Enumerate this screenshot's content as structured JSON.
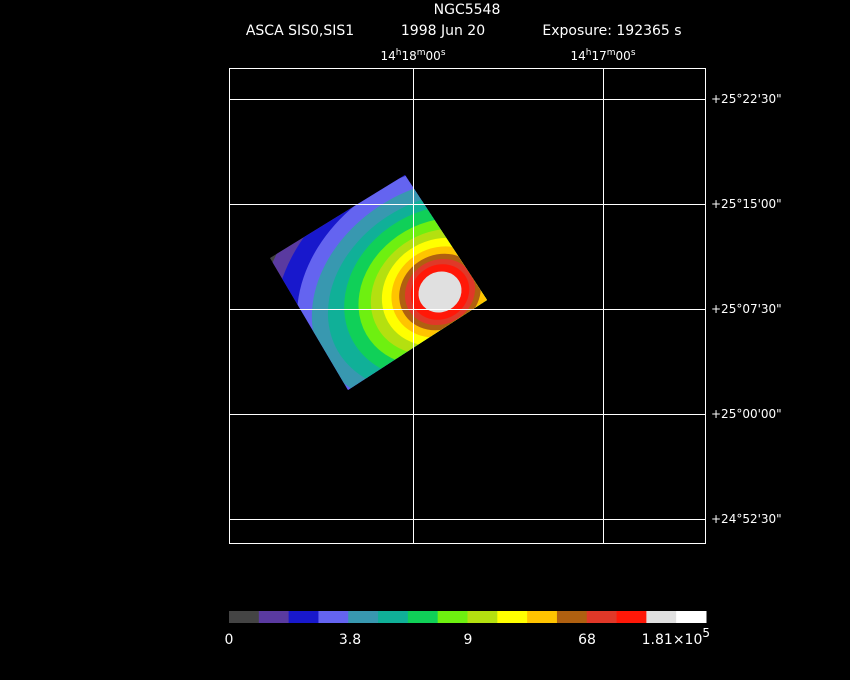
{
  "header": {
    "title": "NGC5548",
    "instrument": "ASCA SIS0,SIS1",
    "date": "1998 Jun 20",
    "exposure": "Exposure: 192365 s"
  },
  "ra_labels": [
    [
      "14",
      "h",
      "18",
      "m",
      "00",
      "s"
    ],
    [
      "14",
      "h",
      "17",
      "m",
      "00",
      "s"
    ]
  ],
  "dec_labels": [
    "+25°22'30\"",
    "+25°15'00\"",
    "+25°07'30\"",
    "+25°00'00\"",
    "+24°52'30\""
  ],
  "colorbar": {
    "colors": [
      "#444444",
      "#5a3aa0",
      "#1818cc",
      "#6464f0",
      "#3898b0",
      "#10b098",
      "#10d058",
      "#6ef010",
      "#b4e010",
      "#ffff00",
      "#ffc400",
      "#b06010",
      "#e03828",
      "#ff1808",
      "#e0e0e0",
      "#ffffff"
    ],
    "labels": [
      "0",
      "3.8",
      "9",
      "68"
    ],
    "max_label": {
      "mantissa": "1.81×10",
      "exponent": "5"
    }
  }
}
